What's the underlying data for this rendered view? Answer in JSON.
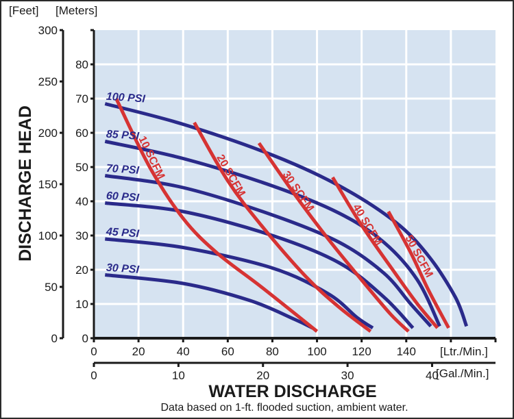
{
  "chart_data": {
    "type": "line",
    "title": "",
    "ylabel": "DISCHARGE HEAD",
    "xlabel": "WATER DISCHARGE",
    "note": "Data based on 1-ft. flooded suction, ambient water.",
    "colors": {
      "psi": "#2a2a8a",
      "scfm": "#d63333",
      "plot_bg": "#d6e3f1",
      "grid": "#ffffff",
      "axis": "#1a1a1a"
    },
    "y_axes": {
      "feet": {
        "unit_label": "[Feet]",
        "ticks": [
          0,
          50,
          100,
          150,
          200,
          250,
          300
        ],
        "range": [
          0,
          300
        ]
      },
      "meters": {
        "unit_label": "[Meters]",
        "ticks": [
          0,
          10,
          20,
          30,
          40,
          50,
          60,
          70,
          80
        ],
        "range": [
          0,
          90
        ]
      }
    },
    "x_axes": {
      "ltr_min": {
        "unit_label": "[Ltr./Min.]",
        "ticks": [
          0,
          20,
          40,
          60,
          80,
          100,
          120,
          140
        ],
        "range": [
          0,
          180
        ]
      },
      "gal_min": {
        "unit_label": "[Gal./Min.]",
        "ticks": [
          0,
          10,
          20,
          30,
          40
        ],
        "range": [
          0,
          47.5
        ]
      }
    },
    "grid": true,
    "x_units": "Ltr./Min.",
    "y_units": "Meters",
    "series": [
      {
        "name": "100 PSI",
        "kind": "psi",
        "points": [
          [
            5,
            68.5
          ],
          [
            40,
            62.5
          ],
          [
            80,
            53.5
          ],
          [
            110,
            44.5
          ],
          [
            135,
            34
          ],
          [
            150,
            24
          ],
          [
            162,
            12
          ],
          [
            167,
            3.5
          ]
        ]
      },
      {
        "name": "85 PSI",
        "kind": "psi",
        "points": [
          [
            5,
            57.5
          ],
          [
            40,
            52.5
          ],
          [
            80,
            44.5
          ],
          [
            110,
            36.5
          ],
          [
            130,
            28
          ],
          [
            145,
            17
          ],
          [
            155,
            3.5
          ]
        ]
      },
      {
        "name": "70 PSI",
        "kind": "psi",
        "points": [
          [
            5,
            47.5
          ],
          [
            40,
            44
          ],
          [
            80,
            36
          ],
          [
            110,
            28
          ],
          [
            130,
            19
          ],
          [
            142,
            10
          ],
          [
            151,
            3.5
          ]
        ]
      },
      {
        "name": "60 PSI",
        "kind": "psi",
        "points": [
          [
            5,
            39.5
          ],
          [
            40,
            37
          ],
          [
            80,
            30
          ],
          [
            110,
            22
          ],
          [
            130,
            12
          ],
          [
            143,
            3
          ]
        ]
      },
      {
        "name": "45 PSI",
        "kind": "psi",
        "points": [
          [
            5,
            29
          ],
          [
            40,
            26.5
          ],
          [
            80,
            20.5
          ],
          [
            105,
            13
          ],
          [
            118,
            6
          ],
          [
            125,
            3
          ]
        ]
      },
      {
        "name": "30 PSI",
        "kind": "psi",
        "points": [
          [
            5,
            18.5
          ],
          [
            40,
            16
          ],
          [
            70,
            11
          ],
          [
            90,
            5.5
          ],
          [
            98,
            3
          ]
        ]
      },
      {
        "name": "10 SCFM",
        "kind": "scfm",
        "points": [
          [
            10,
            70
          ],
          [
            25,
            50
          ],
          [
            40,
            35
          ],
          [
            55,
            25
          ],
          [
            75,
            15
          ],
          [
            100,
            2
          ]
        ]
      },
      {
        "name": "20 SCFM",
        "kind": "scfm",
        "points": [
          [
            45,
            63
          ],
          [
            60,
            46
          ],
          [
            75,
            33
          ],
          [
            95,
            18
          ],
          [
            110,
            9
          ],
          [
            124,
            2
          ]
        ]
      },
      {
        "name": "30 SCFM",
        "kind": "scfm",
        "points": [
          [
            74,
            57
          ],
          [
            90,
            42
          ],
          [
            105,
            29
          ],
          [
            120,
            17
          ],
          [
            133,
            7
          ],
          [
            141,
            2
          ]
        ]
      },
      {
        "name": "40 SCFM",
        "kind": "scfm",
        "points": [
          [
            107,
            47
          ],
          [
            120,
            33
          ],
          [
            135,
            19
          ],
          [
            145,
            10
          ],
          [
            154,
            3
          ]
        ]
      },
      {
        "name": "50 SCFM",
        "kind": "scfm",
        "points": [
          [
            132,
            37
          ],
          [
            142,
            25
          ],
          [
            150,
            14
          ],
          [
            159,
            3
          ]
        ]
      }
    ],
    "psi_labels": [
      "100 PSI",
      "85 PSI",
      "70 PSI",
      "60 PSI",
      "45 PSI",
      "30 PSI"
    ],
    "scfm_labels": [
      "10 SCFM",
      "20 SCFM",
      "30 SCFM",
      "40 SCFM",
      "50 SCFM"
    ]
  }
}
